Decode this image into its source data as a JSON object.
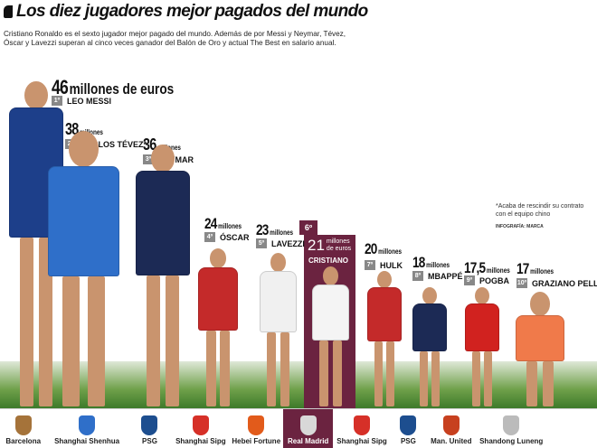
{
  "title": "Los diez jugadores mejor pagados del mundo",
  "intro": "Cristiano Ronaldo es el sexto jugador mejor pagado del mundo. Además de por Messi y Neymar, Tévez, Óscar y Lavezzi superan al cinco veces ganador del Balón de Oro y actual The Best en salario anual.",
  "players": [
    {
      "rank": "1º",
      "name": "LEO MESSI",
      "amount": "46",
      "unit": "millones de euros",
      "club": "Barcelona",
      "shirt": "#1d3f8a",
      "club_color": "#a5733a"
    },
    {
      "rank": "2º",
      "name": "CARLOS TÉVEZ*",
      "amount": "38",
      "unit": "millones",
      "club": "Shanghai Shenhua",
      "shirt": "#2f6fc9",
      "club_color": "#2f6fc9"
    },
    {
      "rank": "3º",
      "name": "NEYMAR",
      "amount": "36",
      "unit": "millones",
      "club": "PSG",
      "shirt": "#1c2a55",
      "club_color": "#1d4e8f"
    },
    {
      "rank": "4º",
      "name": "ÓSCAR",
      "amount": "24",
      "unit": "millones",
      "club": "Shanghai Sipg",
      "shirt": "#c42a2a",
      "club_color": "#d63028"
    },
    {
      "rank": "5º",
      "name": "LAVEZZI",
      "amount": "23",
      "unit": "millones",
      "club": "Hebei Fortune",
      "shirt": "#f0f0f0",
      "club_color": "#e25b1b"
    },
    {
      "rank": "6º",
      "name": "CRISTIANO",
      "amount": "21",
      "unit": "millones de euros",
      "club": "Real Madrid",
      "shirt": "#f4f4f4",
      "club_color": "#d8d8d8"
    },
    {
      "rank": "7º",
      "name": "HULK",
      "amount": "20",
      "unit": "millones",
      "club": "Shanghai Sipg",
      "shirt": "#c42a2a",
      "club_color": "#d63028"
    },
    {
      "rank": "8º",
      "name": "MBAPPÉ",
      "amount": "18",
      "unit": "millones",
      "club": "PSG",
      "shirt": "#1c2a55",
      "club_color": "#1d4e8f"
    },
    {
      "rank": "9º",
      "name": "POGBA",
      "amount": "17,5",
      "unit": "millones",
      "club": "Man. United",
      "shirt": "#d1221f",
      "club_color": "#c7401f"
    },
    {
      "rank": "10º",
      "name": "GRAZIANO PELLÈ",
      "amount": "17",
      "unit": "millones",
      "club": "Shandong Luneng",
      "shirt": "#f07a4a",
      "club_color": "#bbbbbb"
    }
  ],
  "note": "*Acaba de rescindir su contrato con el equipo chino",
  "credit": "INFOGRAFÍA: MARCA",
  "highlight_color": "#6b2340"
}
